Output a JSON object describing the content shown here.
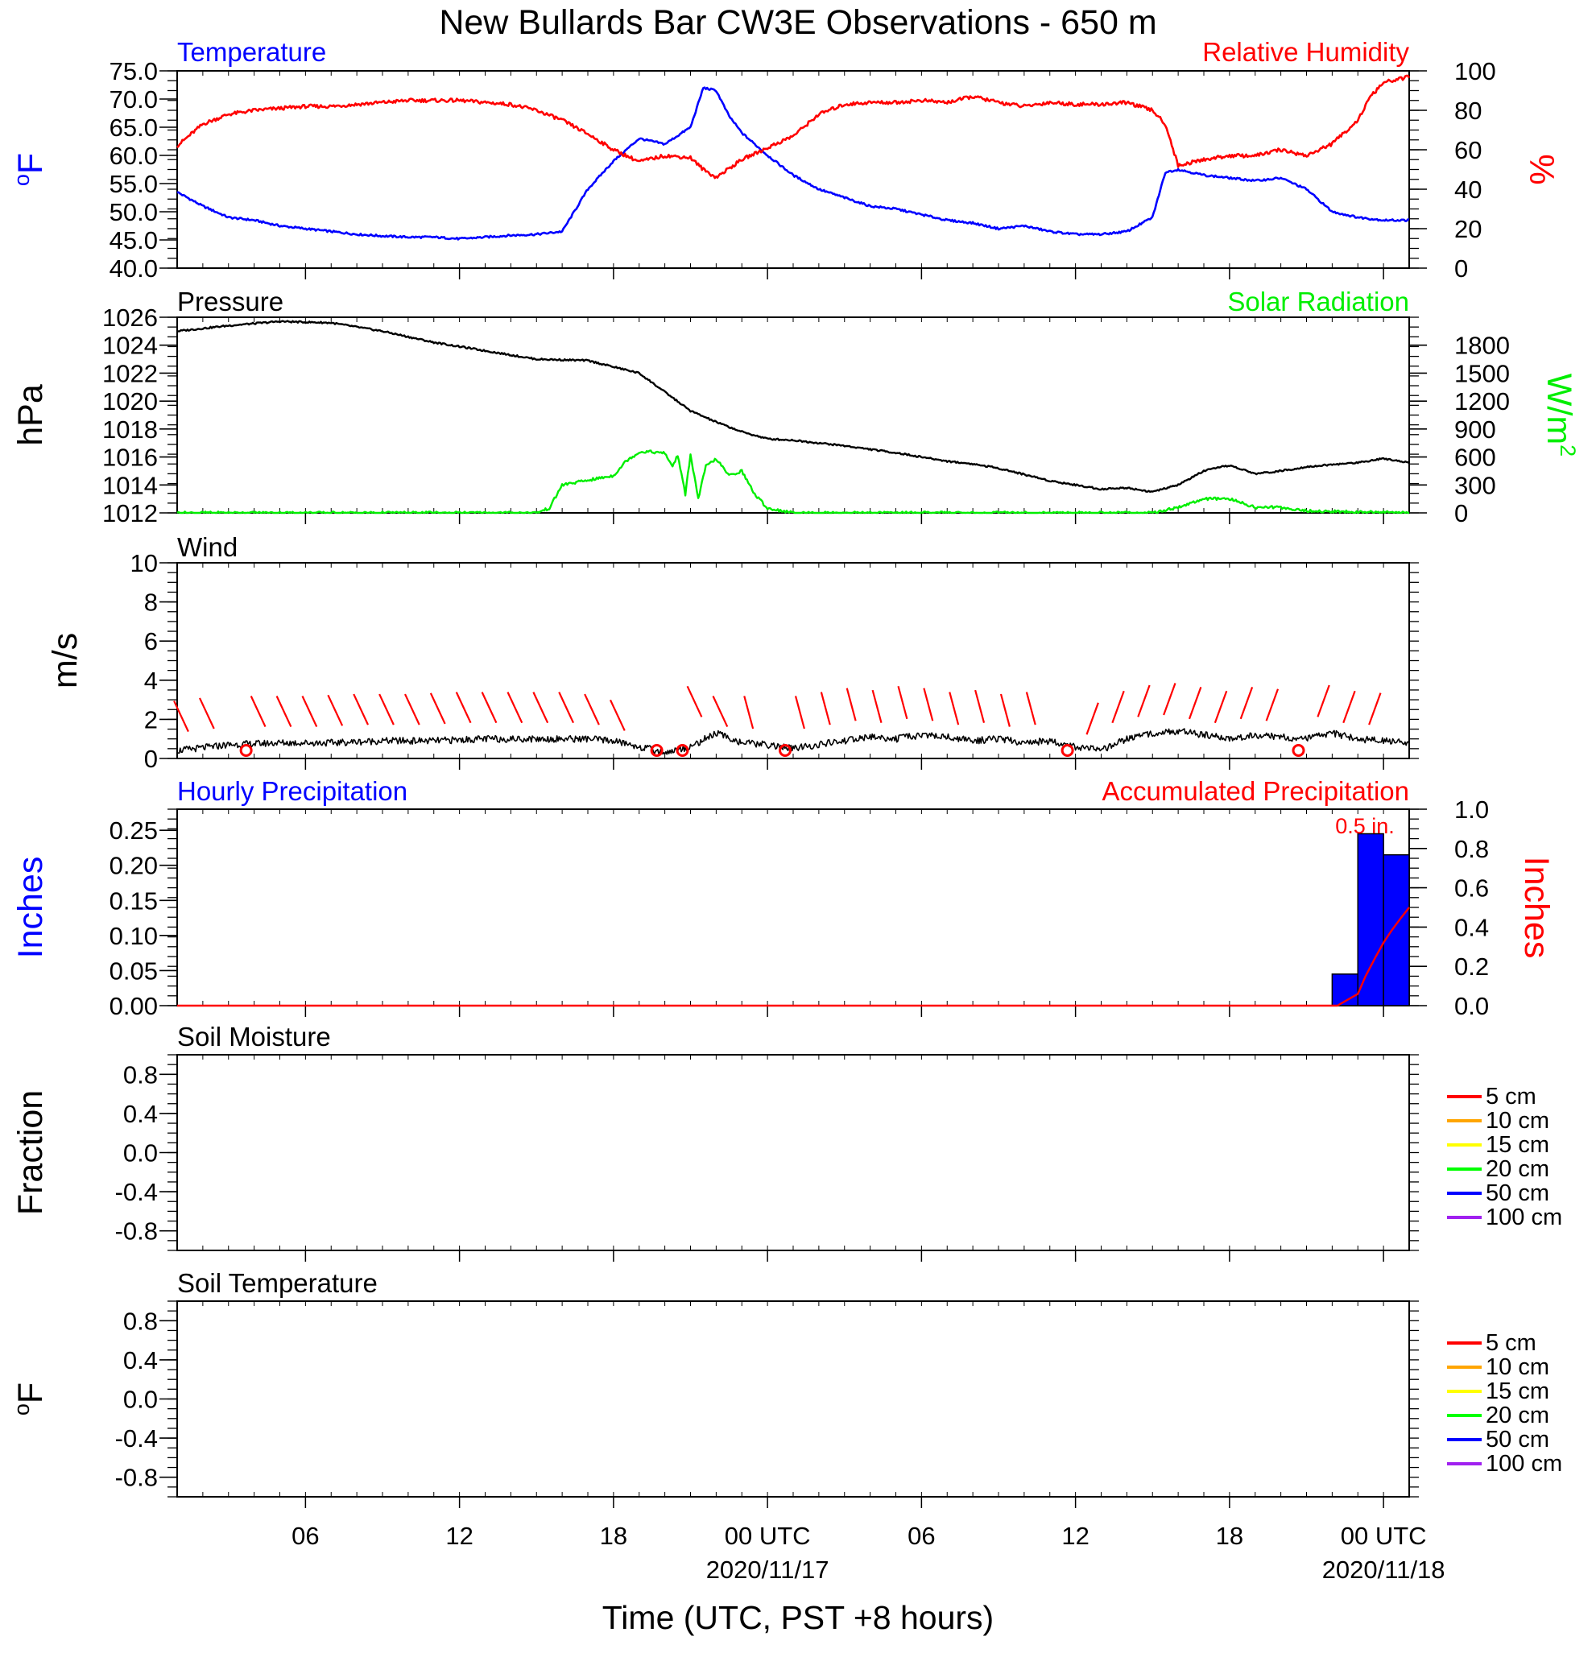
{
  "title": "New Bullards Bar CW3E Observations - 650 m",
  "xaxis": {
    "label": "Time (UTC, PST +8 hours)",
    "range_hours": [
      0,
      48
    ],
    "ticks": [
      {
        "hour": 5,
        "label": "06"
      },
      {
        "hour": 11,
        "label": "12"
      },
      {
        "hour": 17,
        "label": "18"
      },
      {
        "hour": 23,
        "label": "00 UTC",
        "date": "2020/11/17"
      },
      {
        "hour": 29,
        "label": "06"
      },
      {
        "hour": 35,
        "label": "12"
      },
      {
        "hour": 41,
        "label": "18"
      },
      {
        "hour": 47,
        "label": "00 UTC",
        "date": "2020/11/18"
      }
    ]
  },
  "panels": {
    "temp_rh": {
      "left_title": "Temperature",
      "right_title": "Relative Humidity",
      "left_unit": "oF",
      "right_unit": "%",
      "left_range": [
        40,
        75
      ],
      "right_range": [
        0,
        100
      ],
      "left_ticks": [
        "75.0",
        "70.0",
        "65.0",
        "60.0",
        "55.0",
        "50.0",
        "45.0",
        "40.0"
      ],
      "right_ticks": [
        "100",
        "80",
        "60",
        "40",
        "20",
        "0"
      ],
      "colors": {
        "temperature": "#0000ff",
        "rh": "#ff0000"
      }
    },
    "pressure_solar": {
      "left_title": "Pressure",
      "right_title": "Solar Radiation",
      "left_unit": "hPa",
      "right_unit": "W/m2",
      "left_range": [
        1012,
        1026
      ],
      "right_range": [
        0,
        2100
      ],
      "left_ticks": [
        "1026",
        "1024",
        "1022",
        "1020",
        "1018",
        "1016",
        "1014",
        "1012"
      ],
      "right_ticks": [
        "1800",
        "1500",
        "1200",
        "900",
        "600",
        "300",
        "0"
      ],
      "colors": {
        "pressure": "#000000",
        "solar": "#00ee00"
      }
    },
    "wind": {
      "left_title": "Wind",
      "left_unit": "m/s",
      "left_range": [
        0,
        10
      ],
      "left_ticks": [
        "10",
        "8",
        "6",
        "4",
        "2",
        "0"
      ],
      "colors": {
        "speed": "#000000",
        "barbs": "#ff0000"
      }
    },
    "precip": {
      "left_title": "Hourly Precipitation",
      "right_title": "Accumulated Precipitation",
      "left_unit": "Inches",
      "right_unit": "Inches",
      "left_range": [
        0,
        0.28
      ],
      "right_range": [
        0,
        1.0
      ],
      "left_ticks": [
        "0.25",
        "0.20",
        "0.15",
        "0.10",
        "0.05",
        "0.00"
      ],
      "right_ticks": [
        "1.0",
        "0.8",
        "0.6",
        "0.4",
        "0.2",
        "0.0"
      ],
      "total_label": "0.5 in.",
      "colors": {
        "hourly": "#0000ff",
        "accum": "#ff0000"
      }
    },
    "soil_moisture": {
      "left_title": "Soil Moisture",
      "left_unit": "Fraction",
      "left_range": [
        -1,
        1
      ],
      "left_ticks": [
        "0.8",
        "0.4",
        "0.0",
        "-0.4",
        "-0.8"
      ]
    },
    "soil_temp": {
      "left_title": "Soil Temperature",
      "left_unit": "oF",
      "left_range": [
        -1,
        1
      ],
      "left_ticks": [
        "0.8",
        "0.4",
        "0.0",
        "-0.4",
        "-0.8"
      ]
    }
  },
  "soil_legend": [
    {
      "label": "5 cm",
      "color": "#ff0000"
    },
    {
      "label": "10 cm",
      "color": "#ffa500"
    },
    {
      "label": "15 cm",
      "color": "#ffff00"
    },
    {
      "label": "20 cm",
      "color": "#00ff00"
    },
    {
      "label": "50 cm",
      "color": "#0000ff"
    },
    {
      "label": "100 cm",
      "color": "#a020f0"
    }
  ],
  "chart_data": [
    {
      "type": "line",
      "name": "temperature_rh",
      "series": [
        {
          "axis": "left",
          "x": [
            0,
            1,
            2,
            3,
            4,
            5,
            6,
            7,
            8,
            9,
            10,
            11,
            12,
            13,
            14,
            15,
            16,
            17,
            18,
            19,
            20,
            20.5,
            21,
            21.5,
            22,
            23,
            24,
            25,
            26,
            27,
            28,
            29,
            30,
            31,
            32,
            33,
            34,
            35,
            36,
            37,
            38,
            38.5,
            39,
            40,
            41,
            42,
            43,
            44,
            45,
            46,
            47,
            48
          ],
          "values": [
            53.5,
            51,
            49,
            48.5,
            47.5,
            47,
            46.5,
            46,
            45.7,
            45.5,
            45.5,
            45.2,
            45.5,
            45.8,
            46,
            46.5,
            54,
            59,
            63,
            62,
            65,
            72,
            71.5,
            67,
            64,
            60,
            56.5,
            54,
            52.5,
            51,
            50.5,
            49.5,
            48.5,
            48,
            47,
            47.5,
            46.5,
            46,
            46,
            46.5,
            49,
            57,
            57.5,
            56.5,
            56,
            55.5,
            56,
            54,
            50,
            49,
            48.5,
            48.5
          ]
        },
        {
          "axis": "right",
          "x": [
            0,
            1,
            2,
            3,
            4,
            5,
            6,
            7,
            8,
            9,
            10,
            11,
            12,
            13,
            14,
            15,
            16,
            17,
            18,
            19,
            20,
            20.5,
            21,
            22,
            23,
            24,
            25,
            26,
            27,
            28,
            29,
            30,
            31,
            32,
            33,
            34,
            35,
            36,
            37,
            38,
            38.5,
            39,
            40,
            41,
            42,
            43,
            44,
            45,
            46,
            46.5,
            47,
            48
          ],
          "values": [
            62,
            73,
            78,
            80,
            81,
            82,
            82,
            83,
            84,
            85,
            85,
            85,
            84,
            83,
            80,
            75,
            68,
            60,
            54,
            57,
            56,
            50,
            46,
            55,
            61,
            67,
            78,
            83,
            84,
            84,
            85,
            84,
            87,
            84,
            82,
            84,
            83,
            83,
            84,
            80,
            73,
            52,
            55,
            57,
            57,
            60,
            57,
            63,
            75,
            87,
            94,
            97
          ]
        }
      ]
    },
    {
      "type": "line",
      "name": "pressure_solar",
      "series": [
        {
          "axis": "left",
          "x": [
            0,
            2,
            4,
            6,
            8,
            10,
            12,
            14,
            16,
            18,
            20,
            21,
            22,
            23,
            24,
            26,
            28,
            30,
            31,
            32,
            34,
            35,
            36,
            37,
            38,
            39,
            40,
            41,
            42,
            43,
            44,
            46,
            47,
            48
          ],
          "values": [
            1025,
            1025.4,
            1025.7,
            1025.6,
            1025,
            1024.2,
            1023.6,
            1023,
            1022.9,
            1022,
            1019.3,
            1018.5,
            1017.8,
            1017.3,
            1017.2,
            1016.8,
            1016.3,
            1015.7,
            1015.5,
            1015.2,
            1014.3,
            1014,
            1013.7,
            1013.8,
            1013.5,
            1014,
            1015,
            1015.4,
            1014.8,
            1015,
            1015.3,
            1015.6,
            1015.9,
            1015.6
          ]
        },
        {
          "axis": "right",
          "x": [
            0,
            14,
            14.5,
            15,
            16,
            17,
            17.5,
            18,
            18.3,
            19,
            19.3,
            19.5,
            19.8,
            20,
            20.3,
            20.6,
            21,
            21.5,
            22,
            22.5,
            23,
            24,
            38,
            39,
            40,
            41,
            42,
            43,
            44,
            48
          ],
          "values": [
            0,
            0,
            50,
            300,
            350,
            400,
            560,
            650,
            660,
            640,
            500,
            620,
            200,
            630,
            150,
            500,
            580,
            400,
            450,
            200,
            50,
            0,
            0,
            60,
            150,
            150,
            60,
            60,
            20,
            0
          ]
        }
      ]
    },
    {
      "type": "line",
      "name": "wind_speed",
      "unit": "m/s",
      "x": [
        0,
        2,
        4,
        6,
        8,
        10,
        12,
        14,
        16,
        17,
        18,
        19,
        20,
        21,
        22,
        23,
        24,
        25,
        26,
        27,
        28,
        29,
        30,
        31,
        32,
        33,
        34,
        35,
        36,
        37,
        38,
        39,
        40,
        41,
        42,
        43,
        44,
        45,
        46,
        47,
        48
      ],
      "values": [
        0.4,
        0.7,
        0.8,
        0.8,
        0.9,
        0.9,
        1.0,
        1.0,
        1.0,
        0.9,
        0.6,
        0.3,
        0.6,
        1.3,
        0.8,
        0.7,
        0.5,
        0.7,
        0.9,
        1.1,
        1.0,
        1.2,
        1.1,
        0.9,
        1.0,
        0.8,
        0.9,
        0.6,
        0.4,
        1.0,
        1.3,
        1.4,
        1.2,
        1.0,
        1.2,
        1.1,
        1.0,
        1.3,
        1.0,
        0.9,
        0.8
      ]
    },
    {
      "type": "bar",
      "name": "hourly_precipitation",
      "unit": "inches",
      "hours": [
        45,
        46,
        47
      ],
      "values": [
        0.045,
        0.245,
        0.215
      ]
    },
    {
      "type": "line",
      "name": "accumulated_precipitation",
      "unit": "inches",
      "x": [
        0,
        45.2,
        45.6,
        46,
        46.3,
        46.7,
        47,
        47.3,
        47.7,
        48
      ],
      "values": [
        0,
        0,
        0.03,
        0.06,
        0.15,
        0.25,
        0.32,
        0.38,
        0.45,
        0.5
      ]
    }
  ]
}
